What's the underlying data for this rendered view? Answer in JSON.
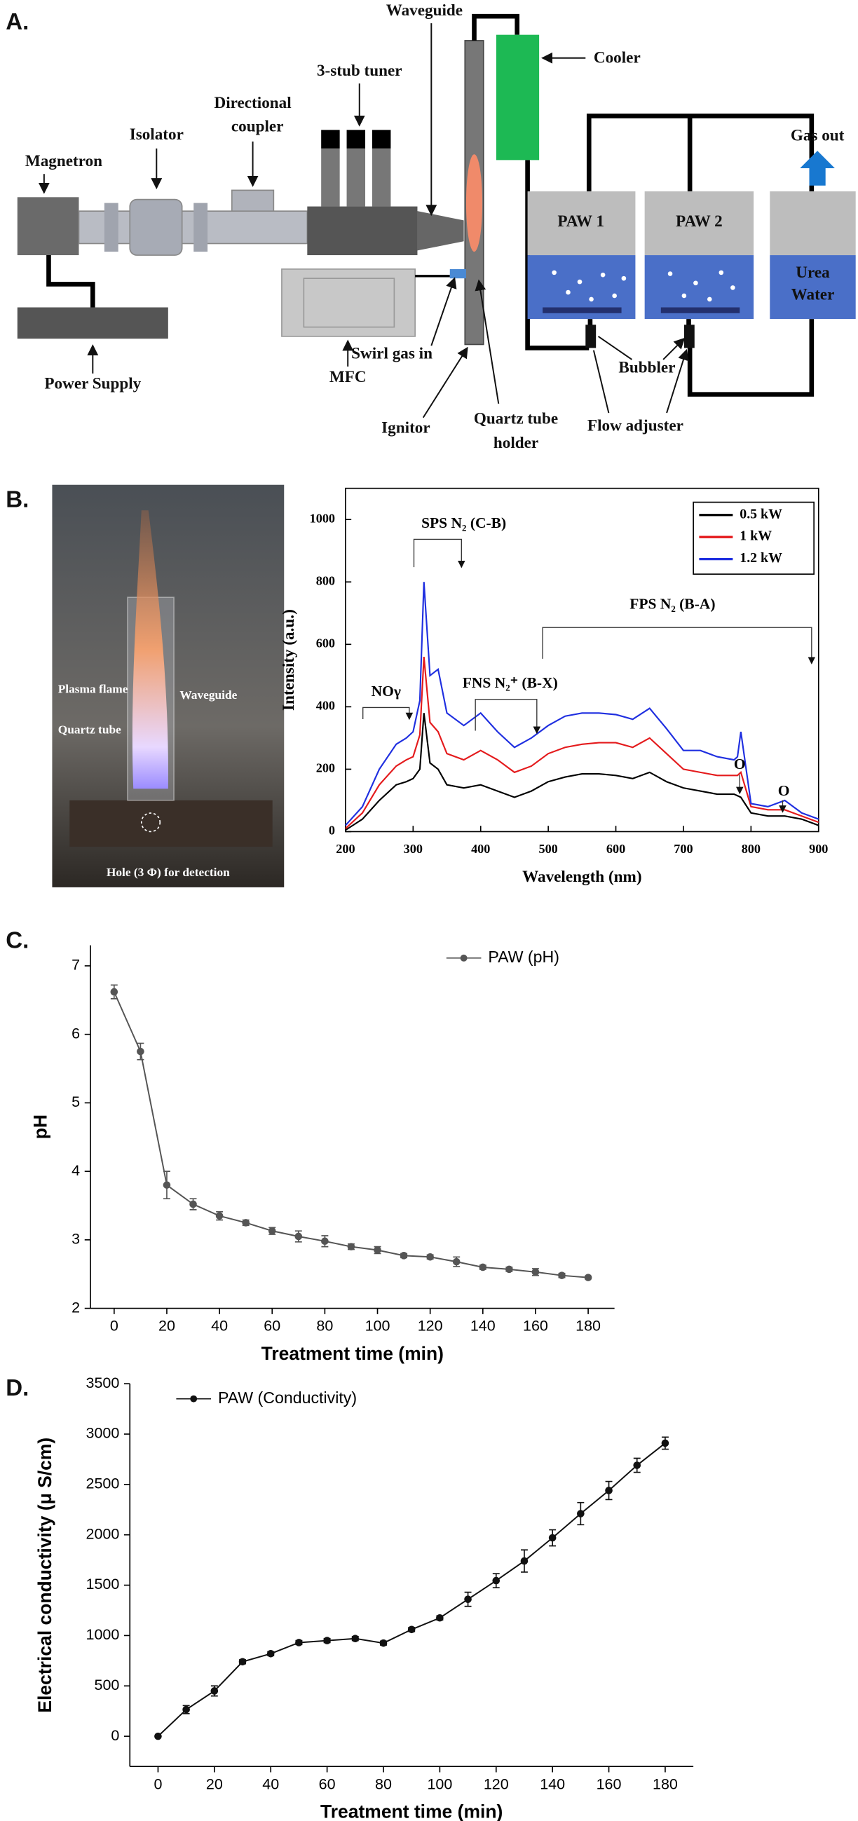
{
  "diagram": {
    "panel": "A.",
    "magnetron": "Magnetron",
    "isolator": "Isolator",
    "directional_coupler": [
      "Directional",
      "coupler"
    ],
    "tuner": "3-stub tuner",
    "waveguide": "Waveguide",
    "cooler": "Cooler",
    "gas_out": "Gas out",
    "paw1": "PAW 1",
    "paw2": "PAW 2",
    "urea_water": [
      "Urea",
      "Water"
    ],
    "power_supply": "Power Supply",
    "mfc": "MFC",
    "swirl_gas": "Swirl gas in",
    "ignitor": "Ignitor",
    "quartz_holder": [
      "Quartz tube",
      "holder"
    ],
    "bubbler": "Bubbler",
    "flow_adjuster": "Flow adjuster"
  },
  "photo": {
    "panel": "B.",
    "plasma_flame": "Plasma flame",
    "quartz_tube": "Quartz tube",
    "waveguide": "Waveguide",
    "hole": "Hole (3 Φ) for detection"
  },
  "chart_data": [
    {
      "type": "line",
      "xlabel": "Wavelength (nm)",
      "ylabel": "Intensity (a.u.)",
      "xlim": [
        200,
        900
      ],
      "ylim": [
        0,
        1100
      ],
      "xticks": [
        200,
        300,
        400,
        500,
        600,
        700,
        800,
        900
      ],
      "yticks": [
        0,
        200,
        400,
        600,
        800,
        1000
      ],
      "legend": "upper right",
      "annotations": [
        "SPS N₂ (C-B)",
        "NOγ",
        "FNS N₂⁺ (B-X)",
        "FPS N₂ (B-A)",
        "O",
        "O"
      ],
      "x": [
        200,
        225,
        250,
        275,
        290,
        300,
        310,
        316,
        325,
        337,
        350,
        375,
        400,
        425,
        450,
        475,
        500,
        525,
        550,
        575,
        600,
        625,
        650,
        675,
        700,
        725,
        750,
        775,
        780,
        785,
        800,
        825,
        850,
        875,
        900
      ],
      "series": [
        {
          "name": "0.5 kW",
          "color": "#000000",
          "values": [
            5,
            40,
            100,
            150,
            160,
            170,
            200,
            380,
            220,
            200,
            150,
            140,
            150,
            130,
            110,
            130,
            160,
            175,
            185,
            185,
            180,
            170,
            190,
            160,
            140,
            130,
            120,
            120,
            115,
            110,
            60,
            50,
            50,
            40,
            20
          ]
        },
        {
          "name": "1 kW",
          "color": "#e41a1c",
          "values": [
            10,
            60,
            150,
            210,
            230,
            240,
            310,
            560,
            350,
            320,
            250,
            230,
            260,
            230,
            190,
            210,
            250,
            270,
            280,
            285,
            285,
            270,
            300,
            250,
            200,
            190,
            180,
            180,
            180,
            190,
            80,
            70,
            70,
            50,
            30
          ]
        },
        {
          "name": "1.2 kW",
          "color": "#1f2fe0",
          "values": [
            20,
            80,
            200,
            280,
            300,
            320,
            420,
            800,
            500,
            520,
            380,
            340,
            380,
            320,
            270,
            300,
            340,
            370,
            380,
            380,
            375,
            360,
            395,
            330,
            260,
            260,
            240,
            230,
            240,
            320,
            90,
            80,
            100,
            60,
            40
          ]
        }
      ]
    },
    {
      "type": "line",
      "panel": "C.",
      "xlabel": "Treatment time (min)",
      "ylabel": "pH",
      "xlim": [
        -9,
        190
      ],
      "ylim": [
        2,
        7.3
      ],
      "xticks": [
        0,
        20,
        40,
        60,
        80,
        100,
        120,
        140,
        160,
        180
      ],
      "yticks": [
        2,
        3,
        4,
        5,
        6,
        7
      ],
      "x": [
        0,
        10,
        20,
        30,
        40,
        50,
        60,
        70,
        80,
        90,
        100,
        110,
        120,
        130,
        140,
        150,
        160,
        170,
        180
      ],
      "series": [
        {
          "name": "PAW (pH)",
          "color": "#555555",
          "values": [
            6.62,
            5.75,
            3.8,
            3.52,
            3.35,
            3.25,
            3.13,
            3.05,
            2.98,
            2.9,
            2.85,
            2.77,
            2.75,
            2.68,
            2.6,
            2.57,
            2.53,
            2.48,
            2.45
          ],
          "errors": [
            0.1,
            0.12,
            0.2,
            0.08,
            0.06,
            0.04,
            0.05,
            0.08,
            0.08,
            0.04,
            0.05,
            0.03,
            0.03,
            0.07,
            0.03,
            0.03,
            0.05,
            0.03,
            0.02
          ]
        }
      ]
    },
    {
      "type": "line",
      "panel": "D.",
      "xlabel": "Treatment time (min)",
      "ylabel": "Electrical conductivity (μ S/cm)",
      "xlim": [
        -10,
        190
      ],
      "ylim": [
        -300,
        3500
      ],
      "xticks": [
        0,
        20,
        40,
        60,
        80,
        100,
        120,
        140,
        160,
        180
      ],
      "yticks": [
        0,
        500,
        1000,
        1500,
        2000,
        2500,
        3000,
        3500
      ],
      "x": [
        0,
        10,
        20,
        30,
        40,
        50,
        60,
        70,
        80,
        90,
        100,
        110,
        120,
        130,
        140,
        150,
        160,
        170,
        180
      ],
      "series": [
        {
          "name": "PAW (Conductivity)",
          "color": "#111111",
          "values": [
            0,
            265,
            450,
            740,
            820,
            930,
            950,
            970,
            925,
            1060,
            1175,
            1360,
            1545,
            1740,
            1970,
            2210,
            2440,
            2690,
            2910
          ],
          "errors": [
            0,
            40,
            50,
            20,
            20,
            20,
            20,
            20,
            20,
            20,
            20,
            70,
            70,
            110,
            80,
            110,
            90,
            70,
            60
          ]
        }
      ]
    }
  ]
}
